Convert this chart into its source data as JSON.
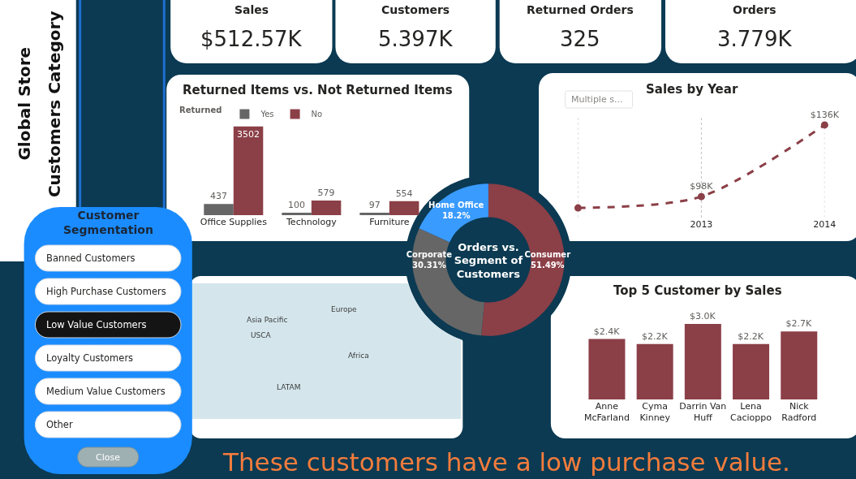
{
  "chart_data": [
    {
      "type": "other",
      "title": "Global Store",
      "subtitle": "Customers Category"
    },
    {
      "type": "other",
      "categories": [
        "Sales",
        "Customers",
        "Returned Orders",
        "Orders"
      ],
      "value_labels": [
        "$512.57K",
        "5.397K",
        "325",
        "3.779K"
      ]
    },
    {
      "type": "bar",
      "title": "Returned Items vs. Not Returned Items",
      "categories": [
        "Office Supplies",
        "Technology",
        "Furniture"
      ],
      "series": [
        {
          "name": "Yes",
          "color": "#666666",
          "values": [
            437,
            100,
            97
          ]
        },
        {
          "name": "No",
          "color": "#8b3f47",
          "values": [
            3502,
            579,
            554
          ]
        }
      ],
      "legend_title": "Returned",
      "legend": "top left",
      "data_labels": true,
      "tick_labels": "x"
    },
    {
      "type": "line",
      "title": "Sales by Year",
      "x": [
        2012,
        2013,
        2014
      ],
      "xlim": [
        2012,
        2014
      ],
      "xticks": [
        {
          "value": 2012,
          "label": null
        },
        2013,
        2014
      ],
      "series": [
        {
          "color": "#8b3f47",
          "values": [
            92,
            98,
            136
          ],
          "value_labels": [
            null,
            "$98K",
            "$136K"
          ]
        }
      ],
      "marker": "circle",
      "line_style": "dashed",
      "grid": "x",
      "tick_labels": "x",
      "annotations": [
        "Multiple s..."
      ]
    },
    {
      "type": "other",
      "title": "Customer Segmentation",
      "categories": [
        "Banned Customers",
        "High Purchase Customers",
        "Low Value Customers",
        "Loyalty Customers",
        "Medium Value Customers",
        "Other"
      ],
      "colors": [
        "#ffffff",
        "#ffffff",
        "#141414",
        "#ffffff",
        "#ffffff",
        "#ffffff"
      ],
      "annotations": [
        "Close",
        "These customers have a low purchase value."
      ]
    },
    {
      "type": "donut",
      "title": "Orders vs.\nSegment of\nCustomers",
      "categories": [
        "Consumer",
        "Corporate",
        "Home Office"
      ],
      "values": [
        51.49,
        30.31,
        18.2
      ],
      "value_labels": [
        "51.49%",
        "30.31%",
        "18.2%"
      ],
      "colors": [
        "#8b3f47",
        "#666666",
        "#3a9bff"
      ]
    },
    {
      "type": "other",
      "categories": [
        "Asia Pacific",
        "Europe",
        "USCA",
        "Africa",
        "LATAM"
      ]
    },
    {
      "type": "bar",
      "title": "Top 5 Customer by Sales",
      "categories": [
        "Anne McFarland",
        "Cyma Kinney",
        "Darrin Van Huff",
        "Lena Cacioppo",
        "Nick Radford"
      ],
      "values": [
        2.4,
        2.2,
        3.0,
        2.2,
        2.7
      ],
      "value_labels": [
        "$2.4K",
        "$2.2K",
        "$3.0K",
        "$2.2K",
        "$2.7K"
      ],
      "color": "#8b3f47",
      "tick_labels": "x"
    }
  ]
}
